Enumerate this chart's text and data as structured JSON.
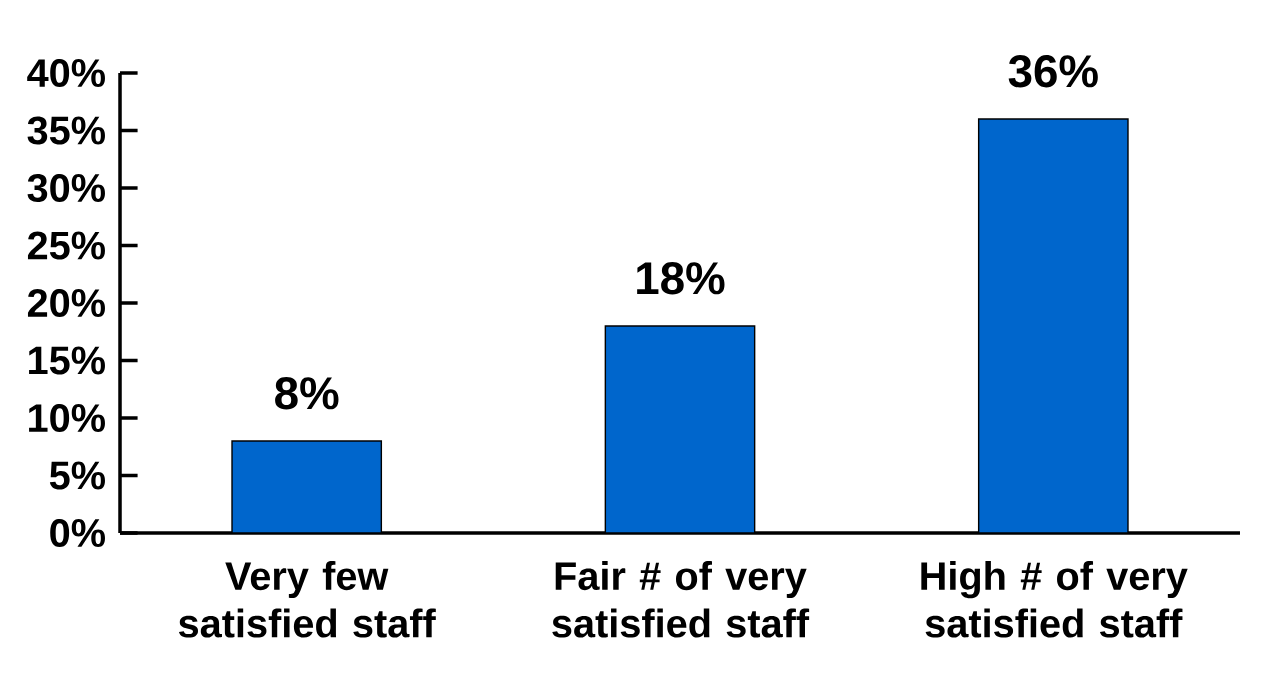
{
  "chart_data": {
    "type": "bar",
    "categories": [
      "Very few satisfied staff",
      "Fair # of very satisfied staff",
      "High # of very satisfied staff"
    ],
    "values": [
      8,
      18,
      36
    ],
    "value_labels": [
      "8%",
      "18%",
      "36%"
    ],
    "color": "#0066cc",
    "ylim": [
      0,
      40
    ],
    "yticks": [
      {
        "value": 0,
        "label": "0%"
      },
      {
        "value": 5,
        "label": "5%"
      },
      {
        "value": 10,
        "label": "10%"
      },
      {
        "value": 15,
        "label": "15%"
      },
      {
        "value": 20,
        "label": "20%"
      },
      {
        "value": 25,
        "label": "25%"
      },
      {
        "value": 30,
        "label": "30%"
      },
      {
        "value": 35,
        "label": "35%"
      },
      {
        "value": 40,
        "label": "40%"
      }
    ],
    "grid": false
  }
}
